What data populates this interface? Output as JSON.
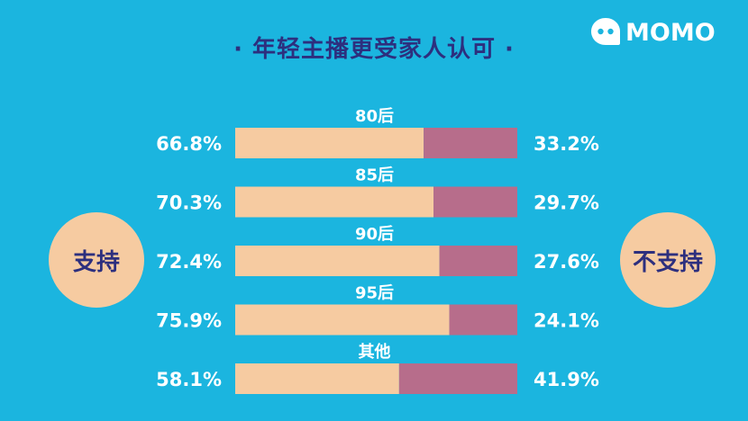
{
  "title": "· 年轻主播更受家人认可 ·",
  "logo": {
    "text": "MOMO",
    "icon": "momo-chat-bubble-icon"
  },
  "left_circle": "支持",
  "right_circle": "不支持",
  "colors": {
    "background": "#1bb5df",
    "support": "#f6cba1",
    "oppose": "#b76d8b",
    "title": "#2d2f7e",
    "text": "#ffffff"
  },
  "chart_data": {
    "type": "bar",
    "orientation": "horizontal-stacked",
    "categories": [
      "80后",
      "85后",
      "90后",
      "95后",
      "其他"
    ],
    "series": [
      {
        "name": "支持",
        "values": [
          66.8,
          70.3,
          72.4,
          75.9,
          58.1
        ],
        "labels": [
          "66.8%",
          "70.3%",
          "72.4%",
          "75.9%",
          "58.1%"
        ]
      },
      {
        "name": "不支持",
        "values": [
          33.2,
          29.7,
          27.6,
          24.1,
          41.9
        ],
        "labels": [
          "33.2%",
          "29.7%",
          "27.6%",
          "24.1%",
          "41.9%"
        ]
      }
    ],
    "xlim": [
      0,
      100
    ]
  }
}
